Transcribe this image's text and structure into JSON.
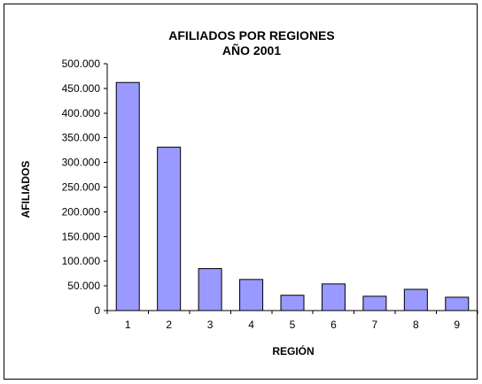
{
  "chart_data": {
    "type": "bar",
    "title": "AFILIADOS POR REGIONES",
    "subtitle": "AÑO 2001",
    "xlabel": "REGIÓN",
    "ylabel": "AFILIADOS",
    "categories": [
      "1",
      "2",
      "3",
      "4",
      "5",
      "6",
      "7",
      "8",
      "9"
    ],
    "values": [
      462000,
      331000,
      85000,
      63000,
      31000,
      54000,
      29000,
      43000,
      27000
    ],
    "ylim": [
      0,
      500000
    ],
    "yticks": [
      "0",
      "50.000",
      "100.000",
      "150.000",
      "200.000",
      "250.000",
      "300.000",
      "350.000",
      "400.000",
      "450.000",
      "500.000"
    ],
    "ytick_values": [
      0,
      50000,
      100000,
      150000,
      200000,
      250000,
      300000,
      350000,
      400000,
      450000,
      500000
    ],
    "grid": false,
    "legend": "none",
    "bar_color": "#9999ff"
  }
}
